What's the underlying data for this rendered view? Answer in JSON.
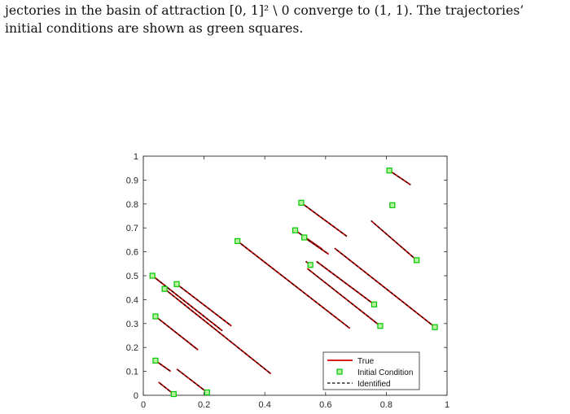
{
  "caption": {
    "line1": "jectories in the basin of attraction [0, 1]² \\ 0 converge to (1, 1). The trajectories’",
    "line2": "initial conditions are shown as green squares."
  },
  "colors": {
    "true_line": "#d40000",
    "identified_line": "#000000",
    "initial_marker_edge": "#00c800",
    "initial_marker_fill": "#b8f0a0"
  },
  "chart_data": {
    "type": "line",
    "xlim": [
      0,
      1
    ],
    "ylim": [
      0,
      1
    ],
    "xticks": [
      "0",
      "0.2",
      "0.4",
      "0.6",
      "0.8",
      "1"
    ],
    "yticks": [
      "0",
      "0.1",
      "0.2",
      "0.3",
      "0.4",
      "0.5",
      "0.6",
      "0.7",
      "0.8",
      "0.9",
      "1"
    ],
    "grid": false,
    "legend": {
      "position": "bottom-right",
      "entries": [
        "True",
        "Initial Condition",
        "Identified"
      ]
    },
    "trajectories": [
      {
        "start": [
          0.81,
          0.94
        ],
        "end": [
          0.88,
          0.88
        ]
      },
      {
        "start": [
          0.82,
          0.795
        ],
        "end": [
          0.81,
          0.8
        ]
      },
      {
        "start": [
          0.52,
          0.805
        ],
        "end": [
          0.67,
          0.665
        ]
      },
      {
        "start": [
          0.9,
          0.565
        ],
        "end": [
          0.75,
          0.73
        ]
      },
      {
        "start": [
          0.5,
          0.69
        ],
        "end": [
          0.59,
          0.61
        ]
      },
      {
        "start": [
          0.53,
          0.66
        ],
        "end": [
          0.61,
          0.59
        ]
      },
      {
        "start": [
          0.31,
          0.645
        ],
        "end": [
          0.68,
          0.28
        ]
      },
      {
        "start": [
          0.55,
          0.545
        ],
        "end": [
          0.535,
          0.56
        ]
      },
      {
        "start": [
          0.96,
          0.285
        ],
        "end": [
          0.63,
          0.615
        ]
      },
      {
        "start": [
          0.76,
          0.38
        ],
        "end": [
          0.57,
          0.56
        ]
      },
      {
        "start": [
          0.78,
          0.29
        ],
        "end": [
          0.54,
          0.53
        ]
      },
      {
        "start": [
          0.03,
          0.5
        ],
        "end": [
          0.26,
          0.27
        ]
      },
      {
        "start": [
          0.07,
          0.445
        ],
        "end": [
          0.42,
          0.09
        ]
      },
      {
        "start": [
          0.11,
          0.465
        ],
        "end": [
          0.29,
          0.29
        ]
      },
      {
        "start": [
          0.04,
          0.33
        ],
        "end": [
          0.18,
          0.19
        ]
      },
      {
        "start": [
          0.04,
          0.145
        ],
        "end": [
          0.09,
          0.1
        ]
      },
      {
        "start": [
          0.1,
          0.005
        ],
        "end": [
          0.05,
          0.055
        ]
      },
      {
        "start": [
          0.21,
          0.012
        ],
        "end": [
          0.11,
          0.11
        ]
      }
    ]
  }
}
